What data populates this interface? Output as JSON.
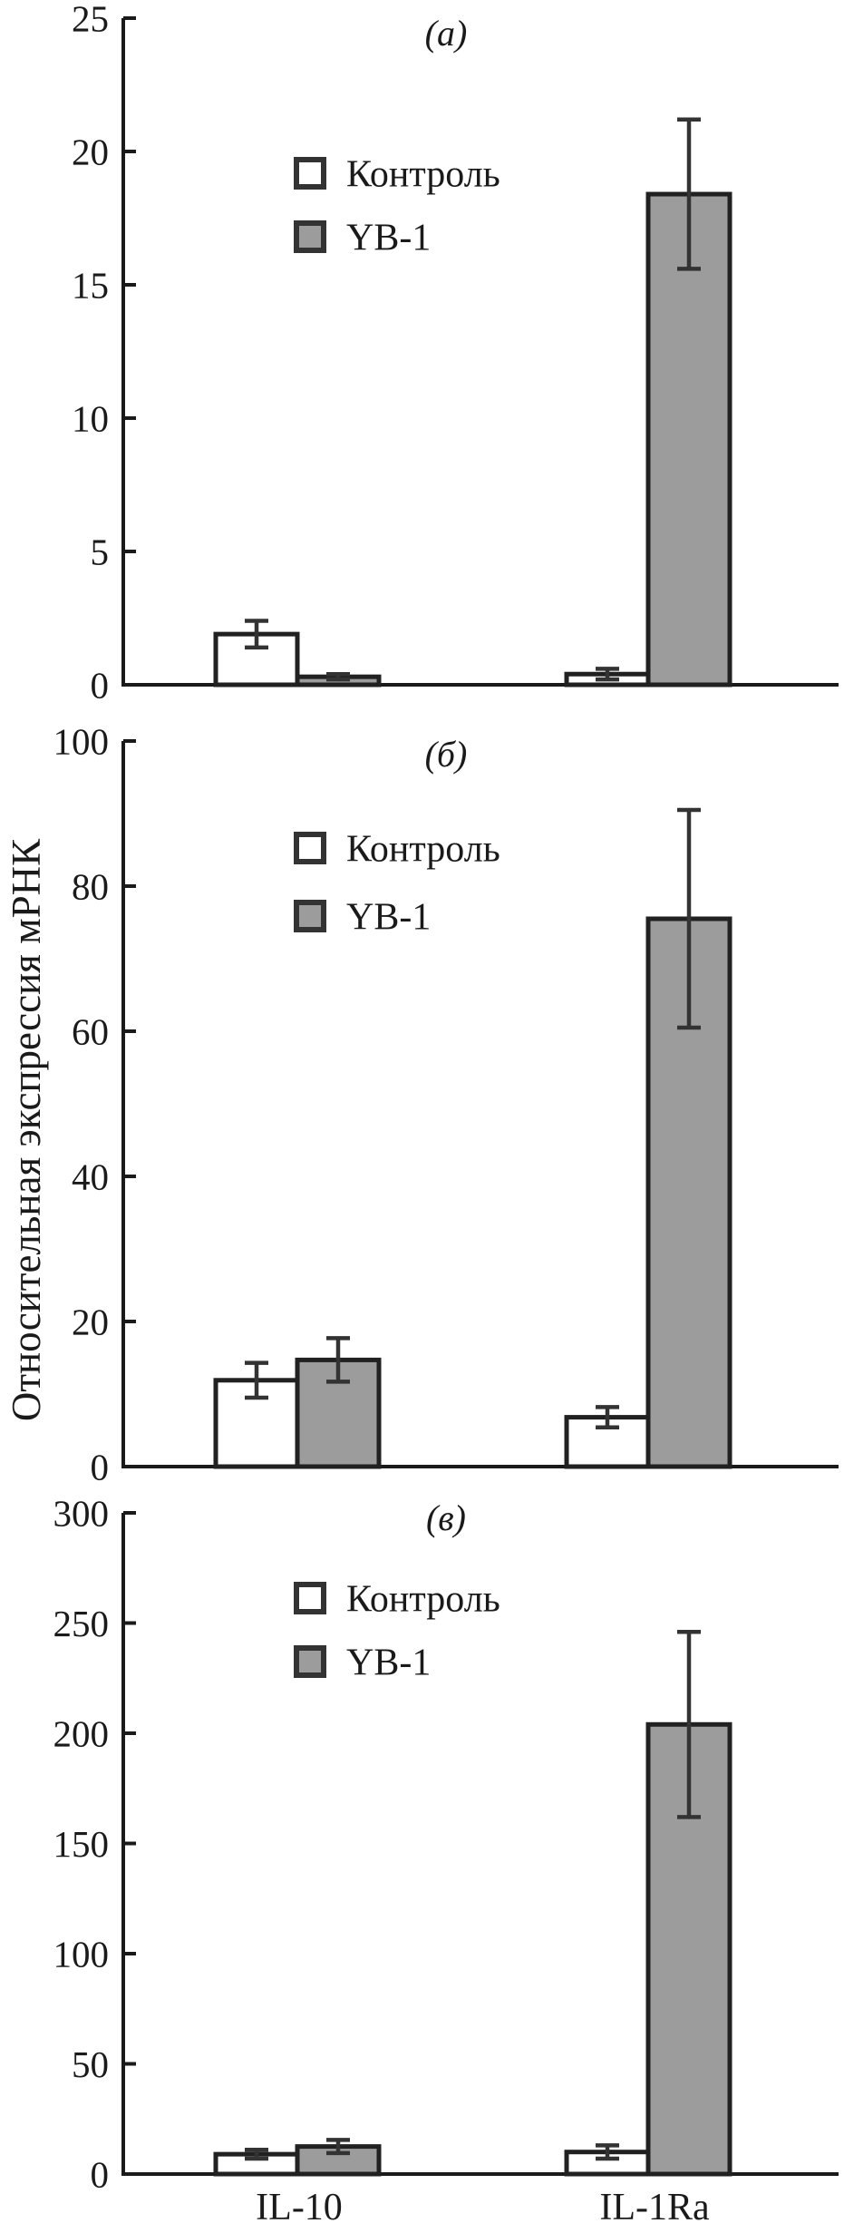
{
  "figure": {
    "ylabel": "Относительная экспрессия мРНК",
    "categories": [
      "IL-10",
      "IL-1Ra"
    ],
    "legend": {
      "items": [
        {
          "label": "Контроль",
          "fill": "#ffffff"
        },
        {
          "label": "YB-1",
          "fill": "#9c9c9c"
        }
      ]
    },
    "colors": {
      "background": "#ffffff",
      "axis": "#1a1a1a",
      "bar_outline": "#212121",
      "error_bar": "#333333",
      "control_fill": "#ffffff",
      "yb1_fill": "#9c9c9c",
      "text": "#1a1a1a"
    }
  },
  "chart_data": [
    {
      "type": "bar",
      "panel_label": "(а)",
      "categories": [
        "IL-10",
        "IL-1Ra"
      ],
      "series": [
        {
          "name": "Контроль",
          "values": [
            1.9,
            0.4
          ],
          "errors": [
            0.5,
            0.2
          ]
        },
        {
          "name": "YB-1",
          "values": [
            0.3,
            18.4
          ],
          "errors": [
            0.1,
            2.8
          ]
        }
      ],
      "ylim": [
        0,
        25
      ],
      "yticks": [
        0,
        5,
        10,
        15,
        20,
        25
      ],
      "grid": false,
      "legend_position": "upper-left"
    },
    {
      "type": "bar",
      "panel_label": "(б)",
      "categories": [
        "IL-10",
        "IL-1Ra"
      ],
      "series": [
        {
          "name": "Контроль",
          "values": [
            11.9,
            6.8
          ],
          "errors": [
            2.4,
            1.4
          ]
        },
        {
          "name": "YB-1",
          "values": [
            14.7,
            75.5
          ],
          "errors": [
            3,
            15
          ]
        }
      ],
      "ylim": [
        0,
        100
      ],
      "yticks": [
        0,
        20,
        40,
        60,
        80,
        100
      ],
      "grid": false,
      "legend_position": "upper-left"
    },
    {
      "type": "bar",
      "panel_label": "(в)",
      "categories": [
        "IL-10",
        "IL-1Ra"
      ],
      "series": [
        {
          "name": "Контроль",
          "values": [
            9,
            10
          ],
          "errors": [
            2,
            3
          ]
        },
        {
          "name": "YB-1",
          "values": [
            12.5,
            204
          ],
          "errors": [
            3,
            42
          ]
        }
      ],
      "ylim": [
        0,
        300
      ],
      "yticks": [
        0,
        50,
        100,
        150,
        200,
        250,
        300
      ],
      "grid": false,
      "legend_position": "upper-left"
    }
  ]
}
